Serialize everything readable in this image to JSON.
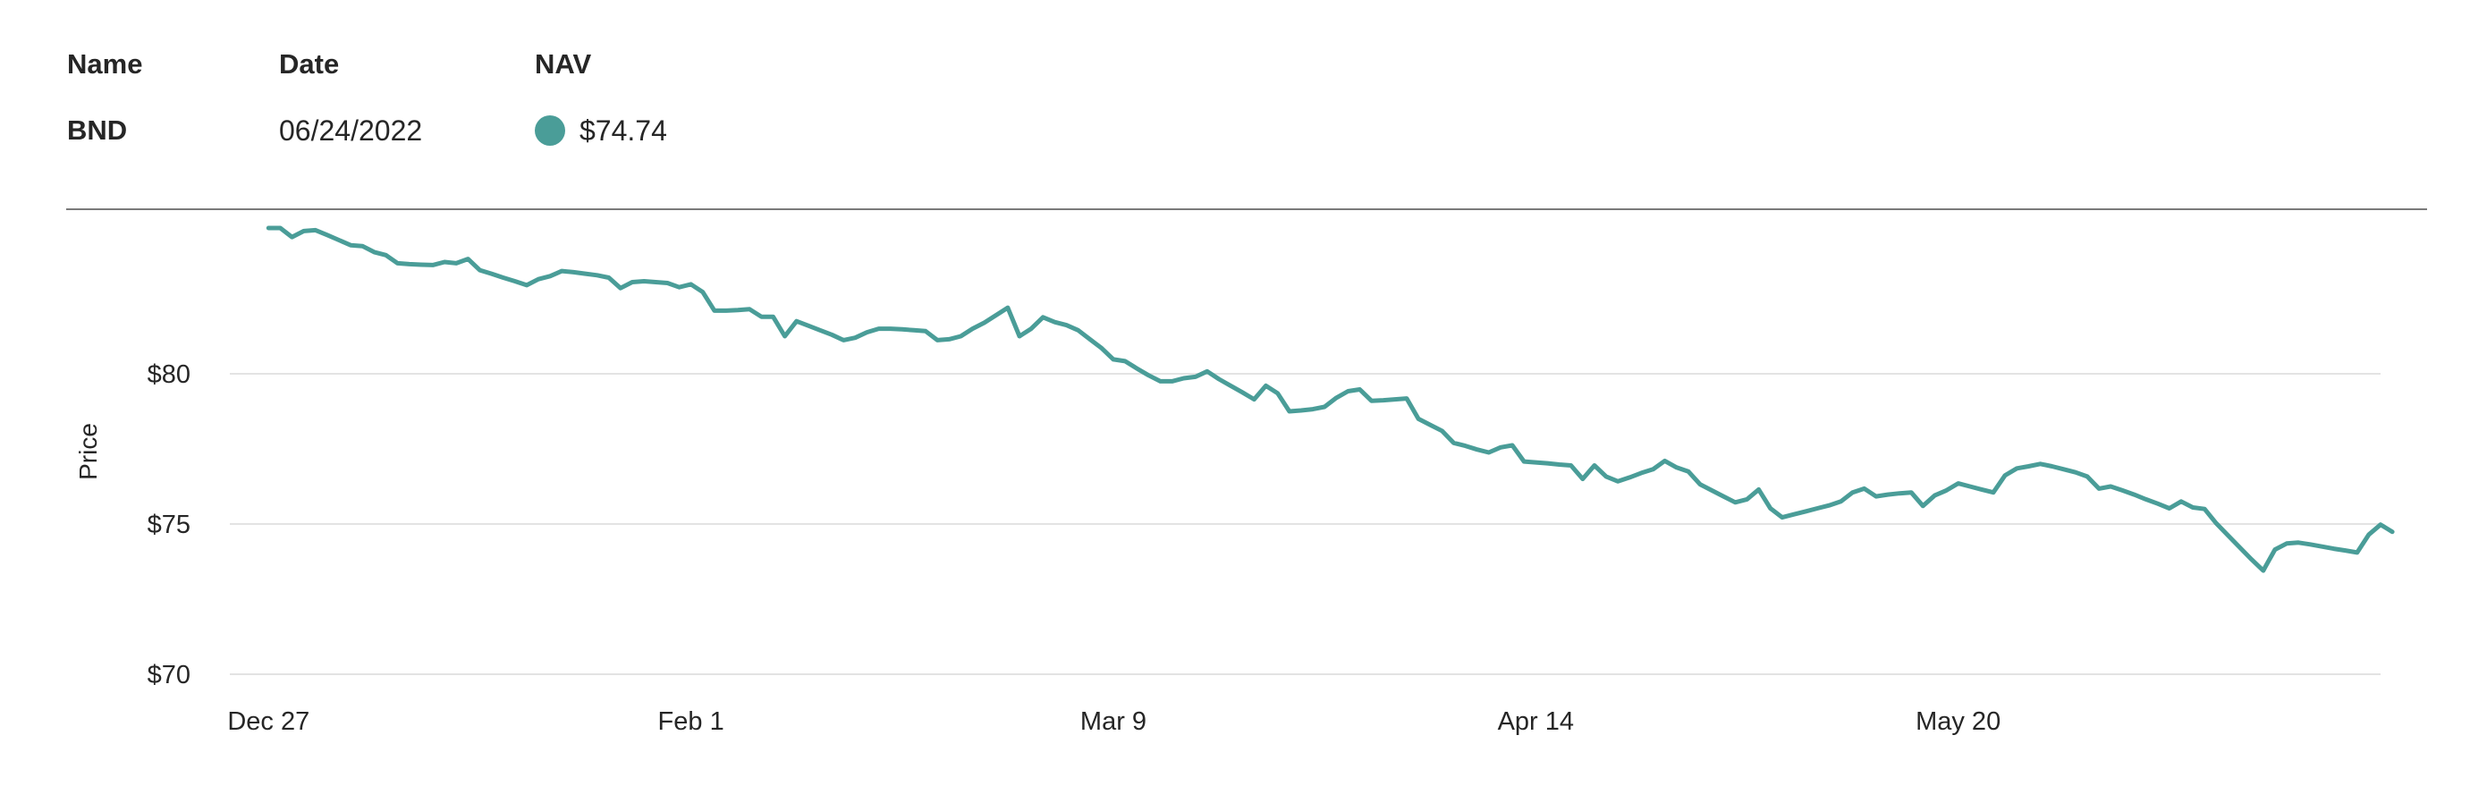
{
  "summary": {
    "headers": {
      "name": "Name",
      "date": "Date",
      "nav": "NAV"
    },
    "row": {
      "name": "BND",
      "date": "06/24/2022",
      "nav": "$74.74"
    }
  },
  "colors": {
    "series": "#4a9d98",
    "grid": "#e3e3e3",
    "divider": "#7a7a7a"
  },
  "chart_data": {
    "type": "line",
    "xlabel": "",
    "ylabel": "Price",
    "ylim": [
      70,
      85
    ],
    "y_ticks": [
      {
        "value": 80,
        "label": "$80"
      },
      {
        "value": 75,
        "label": "$75"
      },
      {
        "value": 70,
        "label": "$70"
      }
    ],
    "x_ticks": [
      {
        "day": 0,
        "label": "Dec 27"
      },
      {
        "day": 36,
        "label": "Feb 1"
      },
      {
        "day": 72,
        "label": "Mar 9"
      },
      {
        "day": 108,
        "label": "Apr 14"
      },
      {
        "day": 144,
        "label": "May 20"
      }
    ],
    "xlim": [
      -3.3,
      180
    ],
    "grid": true,
    "series": [
      {
        "name": "BND",
        "points": [
          [
            0,
            84.85
          ],
          [
            1,
            84.85
          ],
          [
            2,
            84.55
          ],
          [
            3,
            84.75
          ],
          [
            4,
            84.78
          ],
          [
            5,
            84.62
          ],
          [
            6,
            84.45
          ],
          [
            7,
            84.28
          ],
          [
            8,
            84.25
          ],
          [
            9,
            84.05
          ],
          [
            10,
            83.95
          ],
          [
            11,
            83.68
          ],
          [
            12,
            83.65
          ],
          [
            13,
            83.63
          ],
          [
            14,
            83.62
          ],
          [
            15,
            83.72
          ],
          [
            16,
            83.68
          ],
          [
            17,
            83.82
          ],
          [
            18,
            83.45
          ],
          [
            19,
            83.33
          ],
          [
            20,
            83.2
          ],
          [
            21,
            83.08
          ],
          [
            22,
            82.95
          ],
          [
            23,
            83.15
          ],
          [
            24,
            83.25
          ],
          [
            25,
            83.42
          ],
          [
            26,
            83.38
          ],
          [
            27,
            83.33
          ],
          [
            28,
            83.28
          ],
          [
            29,
            83.2
          ],
          [
            30,
            82.85
          ],
          [
            31,
            83.05
          ],
          [
            32,
            83.08
          ],
          [
            33,
            83.05
          ],
          [
            34,
            83.02
          ],
          [
            35,
            82.88
          ],
          [
            36,
            82.98
          ],
          [
            37,
            82.72
          ],
          [
            38,
            82.1
          ],
          [
            39,
            82.1
          ],
          [
            40,
            82.12
          ],
          [
            41,
            82.15
          ],
          [
            42,
            81.9
          ],
          [
            43,
            81.9
          ],
          [
            44,
            81.25
          ],
          [
            45,
            81.75
          ],
          [
            46,
            81.6
          ],
          [
            47,
            81.45
          ],
          [
            48,
            81.3
          ],
          [
            49,
            81.12
          ],
          [
            50,
            81.2
          ],
          [
            51,
            81.38
          ],
          [
            52,
            81.5
          ],
          [
            53,
            81.5
          ],
          [
            54,
            81.48
          ],
          [
            55,
            81.45
          ],
          [
            56,
            81.42
          ],
          [
            57,
            81.12
          ],
          [
            58,
            81.15
          ],
          [
            59,
            81.25
          ],
          [
            60,
            81.5
          ],
          [
            61,
            81.7
          ],
          [
            62,
            81.95
          ],
          [
            63,
            82.2
          ],
          [
            64,
            81.25
          ],
          [
            65,
            81.5
          ],
          [
            66,
            81.88
          ],
          [
            67,
            81.72
          ],
          [
            68,
            81.62
          ],
          [
            69,
            81.45
          ],
          [
            70,
            81.15
          ],
          [
            71,
            80.85
          ],
          [
            72,
            80.48
          ],
          [
            73,
            80.42
          ],
          [
            74,
            80.18
          ],
          [
            75,
            79.95
          ],
          [
            76,
            79.75
          ],
          [
            77,
            79.75
          ],
          [
            78,
            79.85
          ],
          [
            79,
            79.9
          ],
          [
            80,
            80.08
          ],
          [
            81,
            79.82
          ],
          [
            82,
            79.6
          ],
          [
            83,
            79.38
          ],
          [
            84,
            79.15
          ],
          [
            85,
            79.6
          ],
          [
            86,
            79.35
          ],
          [
            87,
            78.75
          ],
          [
            88,
            78.78
          ],
          [
            89,
            78.82
          ],
          [
            90,
            78.9
          ],
          [
            91,
            79.2
          ],
          [
            92,
            79.42
          ],
          [
            93,
            79.48
          ],
          [
            94,
            79.1
          ],
          [
            95,
            79.12
          ],
          [
            96,
            79.15
          ],
          [
            97,
            79.18
          ],
          [
            98,
            78.5
          ],
          [
            99,
            78.3
          ],
          [
            100,
            78.1
          ],
          [
            101,
            77.7
          ],
          [
            102,
            77.6
          ],
          [
            103,
            77.48
          ],
          [
            104,
            77.38
          ],
          [
            105,
            77.55
          ],
          [
            106,
            77.62
          ],
          [
            107,
            77.08
          ],
          [
            108,
            77.05
          ],
          [
            109,
            77.02
          ],
          [
            110,
            76.98
          ],
          [
            111,
            76.95
          ],
          [
            112,
            76.5
          ],
          [
            113,
            76.95
          ],
          [
            114,
            76.58
          ],
          [
            115,
            76.42
          ],
          [
            116,
            76.55
          ],
          [
            117,
            76.7
          ],
          [
            118,
            76.82
          ],
          [
            119,
            77.1
          ],
          [
            120,
            76.88
          ],
          [
            121,
            76.75
          ],
          [
            122,
            76.32
          ],
          [
            123,
            76.12
          ],
          [
            124,
            75.92
          ],
          [
            125,
            75.72
          ],
          [
            126,
            75.82
          ],
          [
            127,
            76.15
          ],
          [
            128,
            75.52
          ],
          [
            129,
            75.22
          ],
          [
            130,
            75.32
          ],
          [
            131,
            75.42
          ],
          [
            132,
            75.52
          ],
          [
            133,
            75.62
          ],
          [
            134,
            75.75
          ],
          [
            135,
            76.05
          ],
          [
            136,
            76.18
          ],
          [
            137,
            75.92
          ],
          [
            138,
            75.98
          ],
          [
            139,
            76.02
          ],
          [
            140,
            76.05
          ],
          [
            141,
            75.6
          ],
          [
            142,
            75.95
          ],
          [
            143,
            76.12
          ],
          [
            144,
            76.35
          ],
          [
            145,
            76.25
          ],
          [
            146,
            76.15
          ],
          [
            147,
            76.05
          ],
          [
            148,
            76.62
          ],
          [
            149,
            76.85
          ],
          [
            150,
            76.92
          ],
          [
            151,
            77.0
          ],
          [
            152,
            76.92
          ],
          [
            153,
            76.82
          ],
          [
            154,
            76.72
          ],
          [
            155,
            76.58
          ],
          [
            156,
            76.18
          ],
          [
            157,
            76.25
          ],
          [
            158,
            76.12
          ],
          [
            159,
            75.98
          ],
          [
            160,
            75.82
          ],
          [
            161,
            75.68
          ],
          [
            162,
            75.52
          ],
          [
            163,
            75.75
          ],
          [
            164,
            75.55
          ],
          [
            165,
            75.5
          ],
          [
            166,
            75.02
          ],
          [
            167,
            74.62
          ],
          [
            168,
            74.22
          ],
          [
            169,
            73.82
          ],
          [
            170,
            73.45
          ],
          [
            171,
            74.15
          ],
          [
            172,
            74.35
          ],
          [
            173,
            74.38
          ],
          [
            174,
            74.32
          ],
          [
            175,
            74.25
          ],
          [
            176,
            74.18
          ],
          [
            177,
            74.12
          ],
          [
            178,
            74.05
          ],
          [
            179,
            74.65
          ],
          [
            180,
            74.98
          ],
          [
            181,
            74.74
          ]
        ]
      }
    ]
  }
}
